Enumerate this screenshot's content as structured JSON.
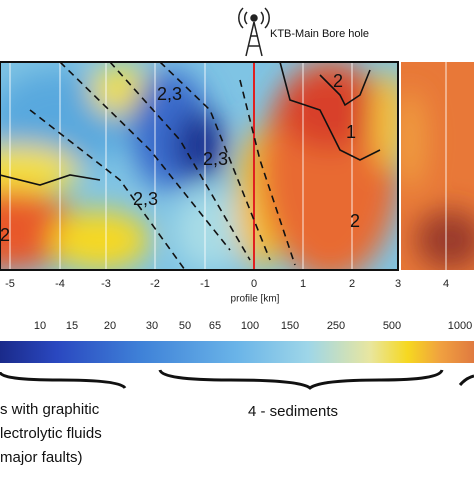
{
  "header": {
    "label": "KTB-Main Bore hole"
  },
  "section": {
    "zone_labels": [
      "2,3",
      "2,3",
      "2,3",
      "2",
      "1",
      "2",
      "2"
    ]
  },
  "profile_axis": {
    "ticks": [
      "-5",
      "-4",
      "-3",
      "-2",
      "-1",
      "0",
      "1",
      "2",
      "3",
      "4"
    ],
    "label": "profile [km]"
  },
  "color_scale": {
    "labels": [
      "10",
      "15",
      "20",
      "30",
      "50",
      "65",
      "100",
      "150",
      "250",
      "500",
      "1000"
    ]
  },
  "legend": {
    "left_lines": [
      "s with  graphitic",
      "lectrolytic fluids",
      "major faults)"
    ],
    "right": "4 - sediments"
  }
}
